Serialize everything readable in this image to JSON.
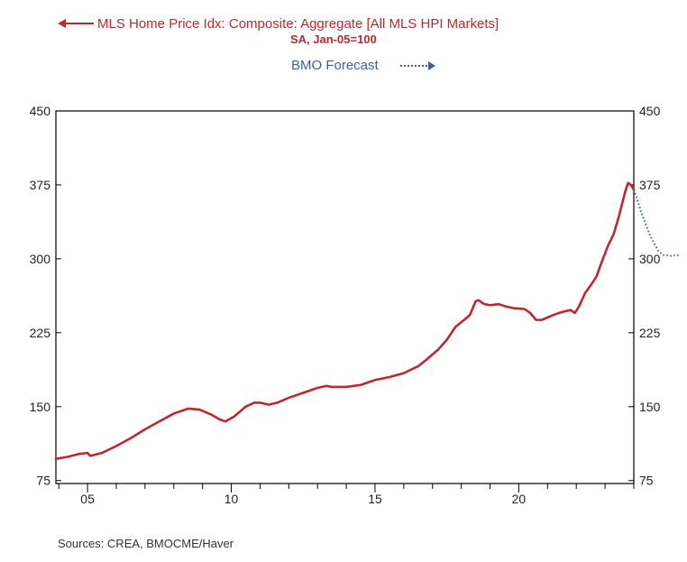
{
  "chart_data": {
    "type": "line",
    "legend": [
      {
        "name": "MLS Home Price Idx: Composite: Aggregate [All MLS HPI Markets]",
        "subtitle": "SA, Jan-05=100",
        "color": "#c0272d",
        "style": "solid",
        "axis": "left"
      },
      {
        "name": "BMO Forecast",
        "color": "#3a5fa8",
        "style": "dotted",
        "axis": "right"
      }
    ],
    "xlim": [
      2003.9,
      2024.0
    ],
    "ylim": [
      72,
      450
    ],
    "yticks": [
      75,
      150,
      225,
      300,
      375,
      450
    ],
    "xticks": [
      {
        "value": 2005.0,
        "label": "05"
      },
      {
        "value": 2010.0,
        "label": "10"
      },
      {
        "value": 2015.0,
        "label": "15"
      },
      {
        "value": 2020.0,
        "label": "20"
      }
    ],
    "series": [
      {
        "name": "MLS Home Price Idx: Composite: Aggregate [All MLS HPI Markets]",
        "color": "#c0272d",
        "style": "solid",
        "points": [
          [
            2003.9,
            97
          ],
          [
            2004.3,
            99
          ],
          [
            2004.7,
            102
          ],
          [
            2005.0,
            103
          ],
          [
            2005.1,
            100
          ],
          [
            2005.5,
            103
          ],
          [
            2006.0,
            110
          ],
          [
            2006.5,
            118
          ],
          [
            2007.0,
            127
          ],
          [
            2007.5,
            135
          ],
          [
            2008.0,
            143
          ],
          [
            2008.5,
            148
          ],
          [
            2008.9,
            147
          ],
          [
            2009.3,
            142
          ],
          [
            2009.6,
            137
          ],
          [
            2009.8,
            135
          ],
          [
            2010.1,
            140
          ],
          [
            2010.5,
            150
          ],
          [
            2010.8,
            154
          ],
          [
            2011.0,
            154
          ],
          [
            2011.3,
            152
          ],
          [
            2011.6,
            154
          ],
          [
            2012.0,
            159
          ],
          [
            2012.5,
            164
          ],
          [
            2013.0,
            169
          ],
          [
            2013.3,
            171
          ],
          [
            2013.5,
            170
          ],
          [
            2014.0,
            170
          ],
          [
            2014.5,
            172
          ],
          [
            2015.0,
            177
          ],
          [
            2015.5,
            180
          ],
          [
            2016.0,
            184
          ],
          [
            2016.5,
            191
          ],
          [
            2016.8,
            198
          ],
          [
            2017.2,
            208
          ],
          [
            2017.5,
            218
          ],
          [
            2017.8,
            231
          ],
          [
            2018.1,
            238
          ],
          [
            2018.3,
            243
          ],
          [
            2018.5,
            257
          ],
          [
            2018.6,
            258
          ],
          [
            2018.8,
            254
          ],
          [
            2019.0,
            253
          ],
          [
            2019.3,
            254
          ],
          [
            2019.5,
            252
          ],
          [
            2019.8,
            250
          ],
          [
            2020.2,
            249
          ],
          [
            2020.4,
            245
          ],
          [
            2020.6,
            238
          ],
          [
            2020.8,
            238
          ],
          [
            2021.2,
            243
          ],
          [
            2021.5,
            246
          ],
          [
            2021.8,
            248
          ],
          [
            2021.95,
            245
          ],
          [
            2022.1,
            252
          ],
          [
            2022.3,
            265
          ],
          [
            2022.5,
            273
          ],
          [
            2022.7,
            282
          ],
          [
            2022.9,
            298
          ],
          [
            2023.1,
            313
          ],
          [
            2023.3,
            325
          ],
          [
            2023.5,
            345
          ],
          [
            2023.7,
            368
          ],
          [
            2023.8,
            377
          ],
          [
            2023.9,
            375
          ],
          [
            2024.0,
            370
          ]
        ]
      },
      {
        "name": "BMO Forecast",
        "color": "#3a5fa8",
        "style": "dotted",
        "points": [
          [
            2024.0,
            370
          ],
          [
            2024.1,
            362
          ],
          [
            2024.25,
            348
          ],
          [
            2024.4,
            336
          ],
          [
            2024.55,
            325
          ],
          [
            2024.7,
            316
          ],
          [
            2024.85,
            308
          ],
          [
            2025.0,
            304
          ],
          [
            2025.3,
            303
          ],
          [
            2025.6,
            304
          ]
        ]
      }
    ]
  },
  "legend_text": {
    "line1": "MLS Home Price Idx: Composite: Aggregate [All MLS HPI Markets]",
    "line2": "SA, Jan-05=100",
    "forecast": "BMO Forecast"
  },
  "source": "Sources:  CREA, BMOCME/Haver"
}
